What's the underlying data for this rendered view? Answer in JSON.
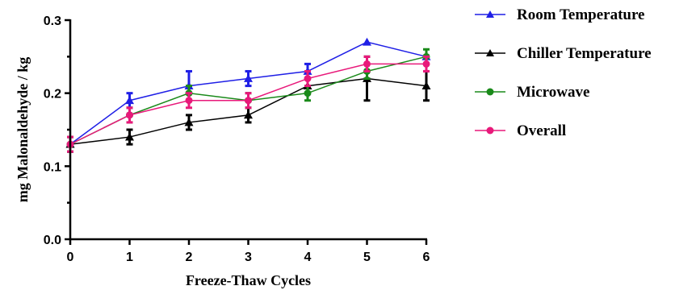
{
  "chart_data": {
    "type": "line",
    "xlabel": "Freeze-Thaw Cycles",
    "ylabel": "mg Malonaldehyde / kg",
    "xlim": [
      0,
      6
    ],
    "ylim": [
      0,
      0.3
    ],
    "x_ticks": [
      "0",
      "1",
      "2",
      "3",
      "4",
      "5",
      "6"
    ],
    "y_ticks": [
      "0.0",
      "0.1",
      "0.2",
      "0.3"
    ],
    "x": [
      0,
      1,
      2,
      3,
      4,
      5,
      6
    ],
    "grid": false,
    "legend_position": "right",
    "series": [
      {
        "name": "Room Temperature",
        "color": "#1f1fe6",
        "marker": "triangle",
        "values": [
          0.13,
          0.19,
          0.21,
          0.22,
          0.23,
          0.27,
          0.25
        ],
        "errors": [
          0.01,
          0.01,
          0.02,
          0.01,
          0.01,
          0.0,
          0.0
        ]
      },
      {
        "name": "Chiller Temperature",
        "color": "#000000",
        "marker": "triangle",
        "values": [
          0.13,
          0.14,
          0.16,
          0.17,
          0.21,
          0.22,
          0.21
        ],
        "errors": [
          0.01,
          0.01,
          0.01,
          0.01,
          0.01,
          0.03,
          0.02
        ]
      },
      {
        "name": "Microwave",
        "color": "#1a8a1a",
        "marker": "circle",
        "values": [
          0.13,
          0.17,
          0.2,
          0.19,
          0.2,
          0.23,
          0.25
        ],
        "errors": [
          0.01,
          0.01,
          0.01,
          0.01,
          0.01,
          0.01,
          0.01
        ]
      },
      {
        "name": "Overall",
        "color": "#e8197a",
        "marker": "circle",
        "values": [
          0.13,
          0.17,
          0.19,
          0.19,
          0.22,
          0.24,
          0.24
        ],
        "errors": [
          0.01,
          0.01,
          0.01,
          0.01,
          0.01,
          0.01,
          0.01
        ]
      }
    ]
  }
}
